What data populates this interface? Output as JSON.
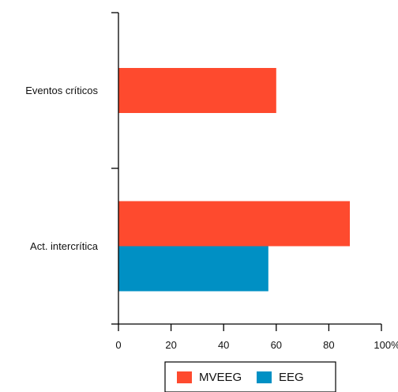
{
  "chart_data": {
    "type": "bar",
    "orientation": "horizontal",
    "title": "",
    "xlabel": "",
    "ylabel": "",
    "categories": [
      "Eventos críticos",
      "Act. intercrítica"
    ],
    "series": [
      {
        "name": "MVEEG",
        "color": "#fe4a2e",
        "values": [
          60,
          88
        ]
      },
      {
        "name": "EEG",
        "color": "#0090c4",
        "values": [
          null,
          57
        ]
      }
    ],
    "xlim": [
      0,
      100
    ],
    "xticks": [
      0,
      20,
      40,
      60,
      80,
      100
    ],
    "xtick_labels": [
      "0",
      "20",
      "40",
      "60",
      "80",
      "100%"
    ],
    "grid": false,
    "legend_position": "bottom-center"
  }
}
